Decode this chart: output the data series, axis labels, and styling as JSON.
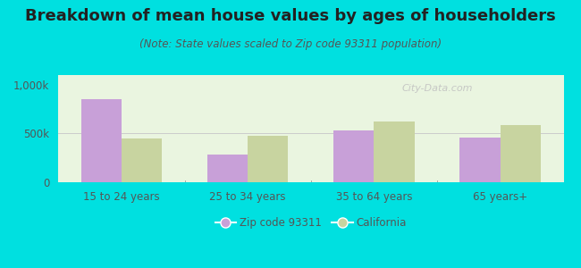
{
  "title": "Breakdown of mean house values by ages of householders",
  "subtitle": "(Note: State values scaled to Zip code 93311 population)",
  "categories": [
    "15 to 24 years",
    "25 to 34 years",
    "35 to 64 years",
    "65 years+"
  ],
  "zip_values": [
    855000,
    285000,
    535000,
    460000
  ],
  "ca_values": [
    450000,
    480000,
    620000,
    585000
  ],
  "zip_color": "#c8a0d8",
  "ca_color": "#c8d4a0",
  "background_outer": "#00e0e0",
  "background_inner_top": "#e8f4e0",
  "background_inner_bottom": "#f5faf0",
  "ylim": [
    0,
    1100000
  ],
  "ytick_labels": [
    "0",
    "500k",
    "1,000k"
  ],
  "ytick_values": [
    0,
    500000,
    1000000
  ],
  "legend_zip": "Zip code 93311",
  "legend_ca": "California",
  "bar_width": 0.32,
  "title_fontsize": 13,
  "subtitle_fontsize": 8.5,
  "tick_fontsize": 8.5,
  "legend_fontsize": 8.5,
  "title_color": "#222222",
  "subtitle_color": "#555555",
  "tick_color": "#555555",
  "watermark": "City-Data.com"
}
